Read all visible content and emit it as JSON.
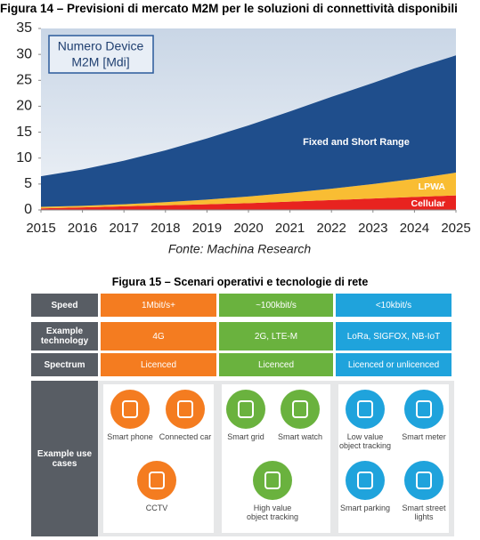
{
  "figure14": {
    "title": "Figura 14 – Previsioni di mercato M2M per le soluzioni di connettività disponibili",
    "source": "Fonte: Machina Research"
  },
  "chart_data": {
    "type": "area",
    "stacked": true,
    "annotation": [
      "Numero Device",
      "M2M [Mdi]"
    ],
    "x": [
      2015,
      2016,
      2017,
      2018,
      2019,
      2020,
      2021,
      2022,
      2023,
      2024,
      2025
    ],
    "xlim": [
      2015,
      2025
    ],
    "xticks": [
      2015,
      2016,
      2017,
      2018,
      2019,
      2020,
      2021,
      2022,
      2023,
      2024,
      2025
    ],
    "ylim": [
      0,
      35
    ],
    "yticks": [
      0,
      5,
      10,
      15,
      20,
      25,
      30,
      35
    ],
    "grid": false,
    "series": [
      {
        "name": "Cellular",
        "color": "#e8231f",
        "values": [
          0.3,
          0.5,
          0.7,
          0.9,
          1.1,
          1.3,
          1.6,
          1.9,
          2.2,
          2.5,
          2.8
        ]
      },
      {
        "name": "LPWA",
        "color": "#f9bd33",
        "values": [
          0.3,
          0.3,
          0.4,
          0.6,
          0.9,
          1.3,
          1.7,
          2.2,
          2.8,
          3.5,
          4.4
        ]
      },
      {
        "name": "Fixed and Short Range",
        "color": "#1f4e8c",
        "values": [
          5.9,
          7.0,
          8.4,
          10.0,
          11.8,
          13.7,
          15.7,
          17.7,
          19.5,
          21.3,
          22.6
        ]
      }
    ]
  },
  "figure15": {
    "title": "Figura 15 – Scenari operativi e tecnologie di rete",
    "row_headers": [
      "Speed",
      "Example technology",
      "Spectrum",
      "Example use cases"
    ],
    "columns": [
      {
        "color": "#f47c20",
        "speed": "1Mbit/s+",
        "technology": "4G",
        "spectrum": "Licenced",
        "use_cases": [
          "Smart phone",
          "Connected car",
          "CCTV"
        ]
      },
      {
        "color": "#6ab23e",
        "speed": "~100kbit/s",
        "technology": "2G, LTE-M",
        "spectrum": "Licenced",
        "use_cases": [
          "Smart grid",
          "Smart watch",
          "High value object tracking"
        ]
      },
      {
        "color": "#1fa3dc",
        "speed": "<10kbit/s",
        "technology": "LoRa, SIGFOX, NB-IoT",
        "spectrum": "Licenced or unlicenced",
        "use_cases": [
          "Low value object tracking",
          "Smart meter",
          "Smart parking",
          "Smart street lights"
        ]
      }
    ]
  }
}
